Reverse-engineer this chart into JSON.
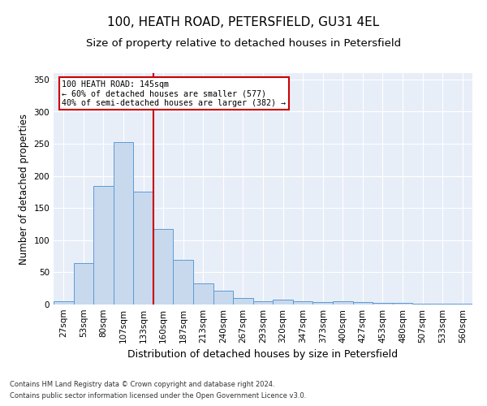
{
  "title1": "100, HEATH ROAD, PETERSFIELD, GU31 4EL",
  "title2": "Size of property relative to detached houses in Petersfield",
  "xlabel": "Distribution of detached houses by size in Petersfield",
  "ylabel": "Number of detached properties",
  "categories": [
    "27sqm",
    "53sqm",
    "80sqm",
    "107sqm",
    "133sqm",
    "160sqm",
    "187sqm",
    "213sqm",
    "240sqm",
    "267sqm",
    "293sqm",
    "320sqm",
    "347sqm",
    "373sqm",
    "400sqm",
    "427sqm",
    "453sqm",
    "480sqm",
    "507sqm",
    "533sqm",
    "560sqm"
  ],
  "values": [
    5,
    65,
    185,
    253,
    175,
    118,
    70,
    33,
    21,
    10,
    5,
    8,
    5,
    4,
    5,
    4,
    3,
    2,
    1,
    1,
    1
  ],
  "bar_color": "#c8d9ee",
  "bar_edge_color": "#5b9bd5",
  "vline_color": "#cc0000",
  "annotation_text": "100 HEATH ROAD: 145sqm\n← 60% of detached houses are smaller (577)\n40% of semi-detached houses are larger (382) →",
  "annotation_box_color": "#ffffff",
  "annotation_box_edge": "#cc0000",
  "footer1": "Contains HM Land Registry data © Crown copyright and database right 2024.",
  "footer2": "Contains public sector information licensed under the Open Government Licence v3.0.",
  "background_color": "#e8eef8",
  "ylim": [
    0,
    360
  ],
  "yticks": [
    0,
    50,
    100,
    150,
    200,
    250,
    300,
    350
  ],
  "title1_fontsize": 11,
  "title2_fontsize": 9.5,
  "xlabel_fontsize": 9,
  "ylabel_fontsize": 8.5,
  "tick_fontsize": 7.5,
  "footer_fontsize": 6.0
}
